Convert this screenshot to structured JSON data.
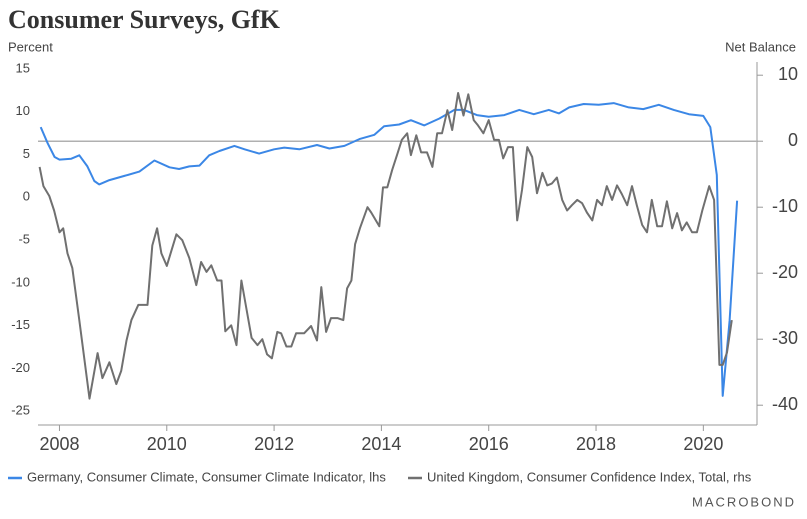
{
  "chart_data": {
    "type": "line",
    "title": "Consumer Surveys, GfK",
    "y_label": "Percent",
    "y2_label": "Net Balance",
    "source": "MACROBOND",
    "xlim": [
      2007.6,
      2021.0
    ],
    "xticks": [
      2008,
      2010,
      2012,
      2014,
      2016,
      2018,
      2020
    ],
    "ylim": [
      -26.6,
      15.8
    ],
    "yticks": [
      -25,
      -20,
      -15,
      -10,
      -5,
      0,
      5,
      10,
      15
    ],
    "y2lim": [
      -43,
      12
    ],
    "y2ticks": [
      -40,
      -30,
      -20,
      -10,
      0,
      10
    ],
    "reference_line": {
      "axis": "y2",
      "value": 0,
      "color": "#b0b0b0"
    },
    "series": [
      {
        "name": "Germany, Consumer Climate, Consumer Climate Indicator, lhs",
        "color": "#3b87e6",
        "axis": "y",
        "x": [
          2007.65,
          2007.78,
          2007.91,
          2008.0,
          2008.22,
          2008.37,
          2008.52,
          2008.65,
          2008.74,
          2008.93,
          2009.21,
          2009.49,
          2009.77,
          2010.05,
          2010.23,
          2010.42,
          2010.61,
          2010.79,
          2010.98,
          2011.26,
          2011.45,
          2011.72,
          2012.0,
          2012.19,
          2012.47,
          2012.8,
          2013.03,
          2013.31,
          2013.59,
          2013.87,
          2014.05,
          2014.33,
          2014.55,
          2014.8,
          2015.08,
          2015.36,
          2015.54,
          2015.78,
          2016.0,
          2016.29,
          2016.57,
          2016.84,
          2017.12,
          2017.31,
          2017.5,
          2017.77,
          2018.05,
          2018.33,
          2018.61,
          2018.88,
          2019.17,
          2019.45,
          2019.73,
          2020.0,
          2020.13,
          2020.25,
          2020.36,
          2020.49,
          2020.63
        ],
        "values": [
          8.2,
          6.3,
          4.7,
          4.4,
          4.5,
          4.9,
          3.6,
          1.9,
          1.5,
          2.0,
          2.5,
          3.0,
          4.3,
          3.5,
          3.3,
          3.6,
          3.7,
          4.9,
          5.4,
          6.0,
          5.6,
          5.1,
          5.6,
          5.8,
          5.6,
          6.1,
          5.7,
          6.0,
          6.8,
          7.3,
          8.3,
          8.5,
          9.0,
          8.4,
          9.2,
          10.2,
          10.2,
          9.6,
          9.4,
          9.6,
          10.2,
          9.7,
          10.2,
          9.8,
          10.5,
          10.9,
          10.8,
          11.0,
          10.5,
          10.3,
          10.8,
          10.2,
          9.7,
          9.5,
          8.2,
          2.6,
          -23.2,
          -14.4,
          -0.4
        ]
      },
      {
        "name": "United Kingdom, Consumer Confidence Index, Total, rhs",
        "color": "#707070",
        "axis": "y2",
        "x": [
          2007.63,
          2007.7,
          2007.81,
          2007.9,
          2008.0,
          2008.07,
          2008.15,
          2008.24,
          2008.37,
          2008.56,
          2008.71,
          2008.8,
          2008.93,
          2009.06,
          2009.15,
          2009.25,
          2009.34,
          2009.47,
          2009.64,
          2009.73,
          2009.82,
          2009.9,
          2010.0,
          2010.09,
          2010.18,
          2010.29,
          2010.42,
          2010.55,
          2010.64,
          2010.74,
          2010.83,
          2010.94,
          2011.02,
          2011.09,
          2011.2,
          2011.3,
          2011.39,
          2011.48,
          2011.58,
          2011.69,
          2011.78,
          2011.87,
          2011.96,
          2012.06,
          2012.13,
          2012.23,
          2012.32,
          2012.41,
          2012.56,
          2012.69,
          2012.8,
          2012.88,
          2012.97,
          2013.06,
          2013.18,
          2013.29,
          2013.36,
          2013.44,
          2013.51,
          2013.6,
          2013.74,
          2013.81,
          2013.96,
          2014.03,
          2014.11,
          2014.2,
          2014.29,
          2014.38,
          2014.48,
          2014.55,
          2014.65,
          2014.74,
          2014.85,
          2014.95,
          2015.04,
          2015.13,
          2015.23,
          2015.32,
          2015.43,
          2015.53,
          2015.62,
          2015.72,
          2015.8,
          2015.9,
          2016.0,
          2016.1,
          2016.19,
          2016.27,
          2016.36,
          2016.45,
          2016.53,
          2016.62,
          2016.72,
          2016.81,
          2016.9,
          2017.0,
          2017.09,
          2017.18,
          2017.27,
          2017.37,
          2017.46,
          2017.55,
          2017.65,
          2017.74,
          2017.83,
          2017.93,
          2018.02,
          2018.11,
          2018.2,
          2018.3,
          2018.39,
          2018.48,
          2018.58,
          2018.67,
          2018.76,
          2018.86,
          2018.95,
          2019.04,
          2019.14,
          2019.23,
          2019.32,
          2019.42,
          2019.51,
          2019.6,
          2019.69,
          2019.79,
          2019.88,
          2019.98,
          2020.11,
          2020.2,
          2020.3,
          2020.36,
          2020.44,
          2020.53
        ],
        "values": [
          -3.9,
          -6.8,
          -8.3,
          -10.5,
          -13.8,
          -13.2,
          -17.0,
          -19.2,
          -27.1,
          -39.0,
          -32.1,
          -35.9,
          -33.5,
          -36.8,
          -34.8,
          -30.2,
          -27.1,
          -24.8,
          -24.8,
          -15.8,
          -13.2,
          -17.0,
          -18.9,
          -16.5,
          -14.1,
          -15.0,
          -17.7,
          -21.8,
          -18.3,
          -19.8,
          -18.8,
          -21.1,
          -21.1,
          -28.8,
          -27.9,
          -30.9,
          -21.1,
          -25.2,
          -29.8,
          -30.9,
          -30.0,
          -32.3,
          -32.9,
          -28.9,
          -29.1,
          -31.1,
          -31.1,
          -29.1,
          -29.1,
          -28.0,
          -30.2,
          -22.1,
          -28.9,
          -26.8,
          -26.8,
          -27.1,
          -22.3,
          -21.1,
          -15.6,
          -13.2,
          -10.0,
          -10.8,
          -12.9,
          -7.0,
          -7.0,
          -4.4,
          -2.1,
          0.2,
          1.2,
          -2.1,
          0.9,
          -1.7,
          -1.7,
          -3.9,
          1.2,
          1.2,
          4.7,
          1.7,
          7.3,
          3.9,
          7.1,
          3.2,
          2.4,
          1.2,
          3.2,
          0.2,
          0.2,
          -2.6,
          -0.9,
          -0.9,
          -12.0,
          -7.4,
          -0.9,
          -2.4,
          -7.9,
          -4.8,
          -6.7,
          -6.4,
          -5.5,
          -8.9,
          -10.5,
          -9.7,
          -8.9,
          -9.4,
          -10.8,
          -12.0,
          -8.9,
          -9.7,
          -6.8,
          -8.9,
          -6.7,
          -8.0,
          -9.7,
          -6.8,
          -9.7,
          -12.7,
          -13.8,
          -8.9,
          -12.9,
          -12.9,
          -9.1,
          -13.2,
          -10.9,
          -13.5,
          -12.3,
          -13.8,
          -13.8,
          -10.5,
          -6.8,
          -8.9,
          -33.9,
          -33.9,
          -32.0,
          -27.1
        ]
      }
    ]
  }
}
